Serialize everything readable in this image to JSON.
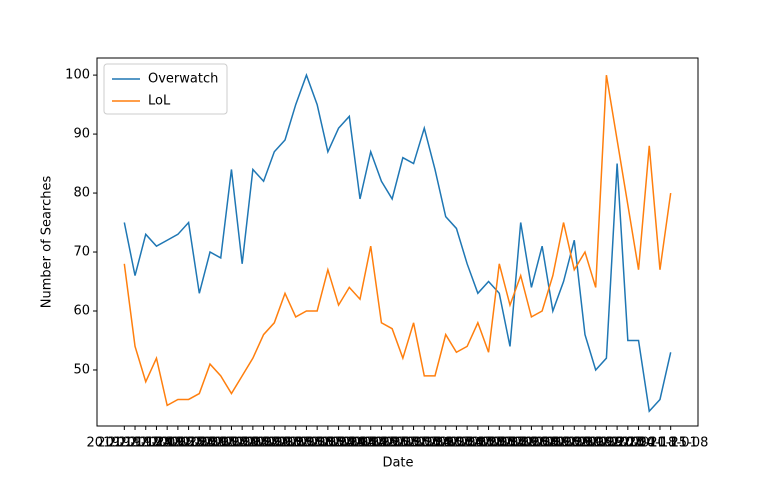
{
  "chart_data": {
    "type": "line",
    "xlabel": "Date",
    "ylabel": "Number of Searches",
    "categories": [
      "2019-11-17",
      "2019-11-24",
      "2019-12-01",
      "2019-12-08",
      "2019-12-15",
      "2019-12-22",
      "2019-12-29",
      "2020-01-05",
      "2020-01-12",
      "2020-01-19",
      "2020-01-26",
      "2020-02-02",
      "2020-02-09",
      "2020-02-16",
      "2020-02-23",
      "2020-03-01",
      "2020-03-08",
      "2020-03-15",
      "2020-03-22",
      "2020-03-29",
      "2020-04-05",
      "2020-04-12",
      "2020-04-19",
      "2020-04-26",
      "2020-05-03",
      "2020-05-10",
      "2020-05-17",
      "2020-05-24",
      "2020-05-31",
      "2020-06-07",
      "2020-06-14",
      "2020-06-21",
      "2020-06-28",
      "2020-07-05",
      "2020-07-12",
      "2020-07-19",
      "2020-07-26",
      "2020-08-02",
      "2020-08-09",
      "2020-08-16",
      "2020-08-23",
      "2020-08-30",
      "2020-09-06",
      "2020-09-13",
      "2020-09-20",
      "2020-09-27",
      "2020-10-04",
      "2020-10-11",
      "2020-10-18",
      "2020-10-25",
      "2020-11-01",
      "2020-11-08"
    ],
    "series": [
      {
        "name": "Overwatch",
        "color": "#1f77b4",
        "values": [
          75,
          66,
          73,
          71,
          72,
          73,
          75,
          63,
          70,
          69,
          84,
          68,
          84,
          82,
          87,
          89,
          95,
          100,
          95,
          87,
          91,
          93,
          79,
          87,
          82,
          79,
          86,
          85,
          91,
          84,
          76,
          74,
          68,
          63,
          65,
          63,
          54,
          75,
          64,
          71,
          60,
          65,
          72,
          56,
          50,
          52,
          85,
          55,
          55,
          43,
          45,
          53
        ]
      },
      {
        "name": "LoL",
        "color": "#ff7f0e",
        "values": [
          68,
          54,
          48,
          52,
          44,
          45,
          45,
          46,
          51,
          49,
          46,
          49,
          52,
          56,
          58,
          63,
          59,
          60,
          60,
          67,
          61,
          64,
          62,
          71,
          58,
          57,
          52,
          58,
          49,
          49,
          56,
          53,
          54,
          58,
          53,
          68,
          61,
          66,
          59,
          60,
          66,
          75,
          67,
          70,
          64,
          100,
          89,
          78,
          67,
          88,
          67,
          80
        ]
      }
    ],
    "ylim": [
      40.5,
      102.9
    ],
    "yticks": [
      50,
      60,
      70,
      80,
      90,
      100
    ],
    "legend": "upper left",
    "grid": false
  }
}
